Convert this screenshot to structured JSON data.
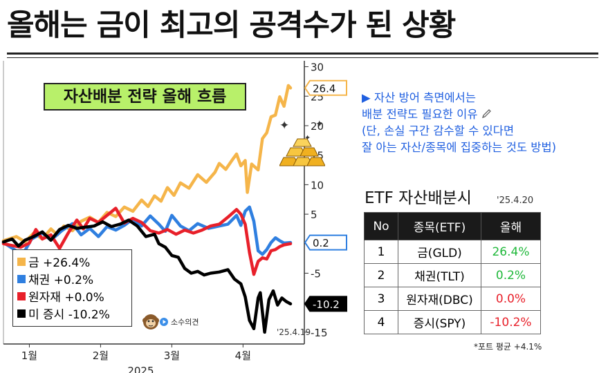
{
  "title": "올해는 금이 최고의 공격수가 된 상황",
  "badge": "자산배분 전략 올해 흐름",
  "note_lines": [
    "▶ 자산 방어 측면에서는",
    "배분 전략도 필요한 이유",
    "(단, 손실 구간 감수할 수 있다면",
    "잘 아는 자산/종목에 집중하는 것도 방법)"
  ],
  "icons": {
    "pencil": "pencil-icon",
    "sparkle": "sparkle-icon",
    "gold": "gold-bars-icon",
    "avatar": "monkey-avatar-icon"
  },
  "watermark": "소수의견",
  "source_date": "'25.4.19",
  "legend": [
    {
      "label": "금 +26.4%",
      "color": "#f5b54a"
    },
    {
      "label": "채권 +0.2%",
      "color": "#2f7fe0"
    },
    {
      "label": "원자재 +0.0%",
      "color": "#e8202a"
    },
    {
      "label": "미 증시 -10.2%",
      "color": "#000000"
    }
  ],
  "chart_data": {
    "type": "line",
    "x_ticks": [
      "1월",
      "2월",
      "3월",
      "4월"
    ],
    "x_year": "2025",
    "ylim": [
      -17,
      31
    ],
    "y_ticks": [
      -15,
      -10,
      -5,
      0,
      5,
      10,
      15,
      20,
      25,
      30
    ],
    "end_labels": [
      {
        "text": "26.4",
        "value": 26.4,
        "color": "#f5b54a"
      },
      {
        "text": "0.2",
        "value": 0.2,
        "color": "#2f7fe0"
      },
      {
        "text": "-10.2",
        "value": -10.2,
        "color": "#000000"
      }
    ],
    "series": [
      {
        "name": "금",
        "color": "#f5b54a",
        "points": [
          [
            0,
            0.5
          ],
          [
            6,
            1.2
          ],
          [
            10,
            0.3
          ],
          [
            14,
            1.8
          ],
          [
            18,
            0.8
          ],
          [
            22,
            2.5
          ],
          [
            25,
            1.5
          ],
          [
            28,
            3.0
          ],
          [
            32,
            2.2
          ],
          [
            36,
            3.8
          ],
          [
            40,
            4.5
          ],
          [
            44,
            3.6
          ],
          [
            48,
            5.3
          ],
          [
            52,
            4.6
          ],
          [
            56,
            6.2
          ],
          [
            60,
            5.5
          ],
          [
            64,
            7.4
          ],
          [
            67,
            6.3
          ],
          [
            70,
            8.1
          ],
          [
            73,
            7.2
          ],
          [
            76,
            9.5
          ],
          [
            79,
            8.2
          ],
          [
            82,
            10.3
          ],
          [
            86,
            9.4
          ],
          [
            90,
            11.7
          ],
          [
            94,
            10.4
          ],
          [
            98,
            12.1
          ],
          [
            100,
            13.6
          ],
          [
            103,
            12.6
          ],
          [
            106,
            14.2
          ],
          [
            108,
            15.2
          ],
          [
            110,
            13.2
          ],
          [
            112,
            14.1
          ],
          [
            113,
            8.7
          ],
          [
            115,
            13.5
          ],
          [
            118,
            12.5
          ],
          [
            120,
            17.8
          ],
          [
            122,
            18.8
          ],
          [
            124,
            21.5
          ],
          [
            126,
            21.8
          ],
          [
            128,
            24.9
          ],
          [
            130,
            23.3
          ],
          [
            132,
            26.8
          ],
          [
            133,
            26.4
          ]
        ]
      },
      {
        "name": "채권",
        "color": "#2f7fe0",
        "points": [
          [
            0,
            0.2
          ],
          [
            5,
            -1.0
          ],
          [
            9,
            -1.8
          ],
          [
            13,
            0.8
          ],
          [
            18,
            1.8
          ],
          [
            22,
            0.6
          ],
          [
            27,
            2.2
          ],
          [
            32,
            3.4
          ],
          [
            36,
            1.5
          ],
          [
            40,
            2.6
          ],
          [
            44,
            1.2
          ],
          [
            48,
            2.9
          ],
          [
            52,
            2.3
          ],
          [
            56,
            3.1
          ],
          [
            60,
            4.2
          ],
          [
            64,
            3.0
          ],
          [
            68,
            4.7
          ],
          [
            72,
            3.3
          ],
          [
            75,
            2.1
          ],
          [
            78,
            4.8
          ],
          [
            82,
            3.0
          ],
          [
            86,
            2.2
          ],
          [
            90,
            3.4
          ],
          [
            95,
            2.6
          ],
          [
            100,
            3.0
          ],
          [
            104,
            3.3
          ],
          [
            108,
            4.8
          ],
          [
            110,
            3.1
          ],
          [
            112,
            5.5
          ],
          [
            114,
            6.2
          ],
          [
            116,
            3.8
          ],
          [
            118,
            -1.2
          ],
          [
            120,
            -1.8
          ],
          [
            122,
            -1.0
          ],
          [
            124,
            0.2
          ],
          [
            126,
            1.0
          ],
          [
            128,
            0.5
          ],
          [
            130,
            0.1
          ],
          [
            133,
            0.2
          ]
        ]
      },
      {
        "name": "원자재",
        "color": "#e8202a",
        "points": [
          [
            0,
            0.0
          ],
          [
            4,
            -0.3
          ],
          [
            8,
            -0.6
          ],
          [
            12,
            0.1
          ],
          [
            15,
            2.4
          ],
          [
            18,
            0.8
          ],
          [
            22,
            1.5
          ],
          [
            26,
            -0.8
          ],
          [
            30,
            1.8
          ],
          [
            34,
            4.0
          ],
          [
            37,
            2.5
          ],
          [
            40,
            4.3
          ],
          [
            44,
            3.6
          ],
          [
            48,
            4.8
          ],
          [
            52,
            6.0
          ],
          [
            56,
            3.5
          ],
          [
            60,
            4.3
          ],
          [
            64,
            3.6
          ],
          [
            68,
            2.2
          ],
          [
            72,
            1.8
          ],
          [
            76,
            2.4
          ],
          [
            80,
            1.6
          ],
          [
            84,
            2.3
          ],
          [
            88,
            1.8
          ],
          [
            92,
            2.3
          ],
          [
            96,
            3.0
          ],
          [
            100,
            3.3
          ],
          [
            104,
            4.5
          ],
          [
            108,
            5.8
          ],
          [
            110,
            5.0
          ],
          [
            112,
            3.3
          ],
          [
            114,
            -1.5
          ],
          [
            116,
            -5.2
          ],
          [
            118,
            -3.0
          ],
          [
            120,
            -2.4
          ],
          [
            122,
            -2.6
          ],
          [
            124,
            -1.2
          ],
          [
            126,
            -1.0
          ],
          [
            128,
            -0.5
          ],
          [
            130,
            -0.2
          ],
          [
            133,
            0.0
          ]
        ]
      },
      {
        "name": "미 증시",
        "color": "#000000",
        "points": [
          [
            0,
            0.3
          ],
          [
            4,
            0.8
          ],
          [
            7,
            -0.4
          ],
          [
            10,
            0.6
          ],
          [
            14,
            1.2
          ],
          [
            18,
            2.0
          ],
          [
            22,
            0.6
          ],
          [
            26,
            2.4
          ],
          [
            30,
            3.1
          ],
          [
            34,
            2.6
          ],
          [
            38,
            2.8
          ],
          [
            42,
            3.0
          ],
          [
            46,
            3.7
          ],
          [
            50,
            2.9
          ],
          [
            54,
            3.3
          ],
          [
            58,
            4.0
          ],
          [
            62,
            3.0
          ],
          [
            66,
            1.2
          ],
          [
            70,
            1.6
          ],
          [
            72,
            0.0
          ],
          [
            75,
            -0.6
          ],
          [
            78,
            -2.0
          ],
          [
            81,
            -2.3
          ],
          [
            84,
            -4.2
          ],
          [
            87,
            -5.0
          ],
          [
            90,
            -4.7
          ],
          [
            93,
            -5.3
          ],
          [
            96,
            -5.0
          ],
          [
            100,
            -4.8
          ],
          [
            104,
            -4.4
          ],
          [
            107,
            -6.0
          ],
          [
            110,
            -6.8
          ],
          [
            112,
            -9.0
          ],
          [
            114,
            -13.0
          ],
          [
            116,
            -14.4
          ],
          [
            118,
            -9.2
          ],
          [
            119,
            -8.3
          ],
          [
            121,
            -15.0
          ],
          [
            123,
            -9.5
          ],
          [
            125,
            -8.0
          ],
          [
            127,
            -10.4
          ],
          [
            129,
            -9.2
          ],
          [
            131,
            -9.8
          ],
          [
            133,
            -10.2
          ]
        ]
      }
    ]
  },
  "table": {
    "title": "ETF 자산배분시",
    "date": "'25.4.20",
    "headers": [
      "No",
      "종목(ETF)",
      "올해"
    ],
    "rows": [
      {
        "no": "1",
        "name": "금(GLD)",
        "ret": "26.4%",
        "color": "#1fb83a"
      },
      {
        "no": "2",
        "name": "채권(TLT)",
        "ret": "0.2%",
        "color": "#1fb83a"
      },
      {
        "no": "3",
        "name": "원자재(DBC)",
        "ret": "0.0%",
        "color": "#e8202a"
      },
      {
        "no": "4",
        "name": "증시(SPY)",
        "ret": "-10.2%",
        "color": "#e8202a"
      }
    ],
    "footnote": "*포트 평균 +4.1%"
  }
}
